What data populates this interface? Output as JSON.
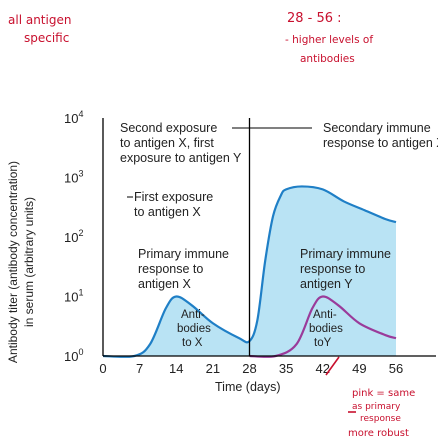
{
  "chart_data": {
    "type": "area",
    "x": [
      0,
      7,
      14,
      21,
      28,
      35,
      42,
      49,
      56
    ],
    "xlabel": "Time (days)",
    "ylabel_line1": "Antibody titer (antibody concentration)",
    "ylabel_line2": "in serum (arbitrary units)",
    "xlim": [
      0,
      56
    ],
    "ylim": [
      0,
      4
    ],
    "y_ticks": [
      "10",
      "10",
      "10",
      "10",
      "10"
    ],
    "y_tick_exp": [
      "0",
      "1",
      "2",
      "3",
      "4"
    ],
    "x_ticks": [
      "0",
      "7",
      "14",
      "21",
      "28",
      "35",
      "42",
      "49",
      "56"
    ],
    "colors": {
      "antibodies_x": "#1f7fc6",
      "antibodies_y": "#9a3b9a",
      "fill": "#b9e3f4",
      "axis": "#000000",
      "annotation": "#c8102e"
    },
    "series": [
      {
        "name": "Anti-bodies to X",
        "points": [
          [
            0,
            0
          ],
          [
            6,
            0
          ],
          [
            9,
            0.2
          ],
          [
            12,
            0.8
          ],
          [
            14,
            1.0
          ],
          [
            17,
            0.85
          ],
          [
            21,
            0.55
          ],
          [
            26,
            0.3
          ],
          [
            28,
            0.25
          ],
          [
            29.5,
            0.6
          ],
          [
            31,
            1.6
          ],
          [
            32.5,
            2.35
          ],
          [
            34,
            2.7
          ],
          [
            35,
            2.8
          ],
          [
            38,
            2.85
          ],
          [
            42,
            2.8
          ],
          [
            46,
            2.6
          ],
          [
            50,
            2.45
          ],
          [
            54,
            2.3
          ],
          [
            56,
            2.25
          ]
        ]
      },
      {
        "name": "Anti-bodies to Y",
        "points": [
          [
            28,
            0
          ],
          [
            33,
            0
          ],
          [
            37,
            0.2
          ],
          [
            40,
            0.8
          ],
          [
            42,
            1.0
          ],
          [
            45,
            0.85
          ],
          [
            49,
            0.55
          ],
          [
            54,
            0.35
          ],
          [
            56,
            0.3
          ]
        ]
      }
    ],
    "labels": {
      "second_exposure": [
        "Second exposure",
        "to antigen X, first",
        "exposure to antigen Y"
      ],
      "first_exposure": [
        "First exposure",
        "to antigen X"
      ],
      "secondary_response": [
        "Secondary immune",
        "response to antigen X"
      ],
      "primary_x": [
        "Primary immune",
        "response to",
        "antigen X"
      ],
      "primary_y": [
        "Primary immune",
        "response to",
        "antigen Y"
      ],
      "antibodies_x": [
        "Anti-",
        "bodies",
        "to X"
      ],
      "antibodies_y": [
        "Anti-",
        "bodies",
        "toY"
      ]
    },
    "exposures_days": [
      0,
      28
    ]
  },
  "handwritten_notes": {
    "top_left": [
      "all antigen",
      "specific"
    ],
    "top_right": [
      "28 - 56 :",
      "- higher levels of",
      "antibodies"
    ],
    "bottom_right": [
      "pink = same",
      "as primary",
      "response",
      "more robust"
    ]
  }
}
